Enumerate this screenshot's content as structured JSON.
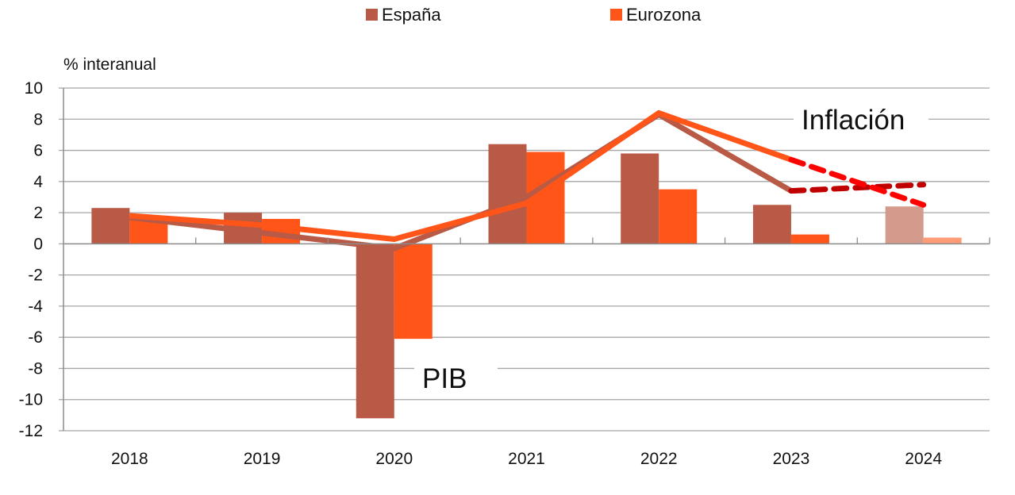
{
  "chart_data": {
    "type": "bar",
    "title": "",
    "ylabel": "% interanual",
    "xlabel": "",
    "ylim": [
      -12,
      10
    ],
    "yticks": [
      10,
      8,
      6,
      4,
      2,
      0,
      -2,
      -4,
      -6,
      -8,
      -10,
      -12
    ],
    "ytick_labels": [
      "10",
      "8",
      "6",
      "4",
      "2",
      "0",
      "-2",
      "-4",
      "-6",
      "-8",
      "-10",
      "-12"
    ],
    "grid": true,
    "legend_position": "top-center",
    "categories": [
      "2018",
      "2019",
      "2020",
      "2021",
      "2022",
      "2023",
      "2024"
    ],
    "forecast_categories": [
      "2024"
    ],
    "series": [
      {
        "name": "España",
        "kind": "bar",
        "metric": "PIB",
        "color": "#B85A45",
        "forecast_color": "#D49A8C",
        "values": [
          2.3,
          2.0,
          -11.2,
          6.4,
          5.8,
          2.5,
          2.4
        ]
      },
      {
        "name": "Eurozona",
        "kind": "bar",
        "metric": "PIB",
        "color": "#FF5519",
        "forecast_color": "#FF9C78",
        "values": [
          1.8,
          1.6,
          -6.1,
          5.9,
          3.5,
          0.6,
          0.4
        ]
      },
      {
        "name": "España",
        "kind": "line",
        "metric": "Inflación",
        "color": "#B85A45",
        "forecast_color": "#C00000",
        "forecast_from": "2023",
        "values": [
          1.7,
          0.7,
          -0.3,
          3.0,
          8.3,
          3.4,
          3.8
        ]
      },
      {
        "name": "Eurozona",
        "kind": "line",
        "metric": "Inflación",
        "color": "#FF5519",
        "forecast_color": "#FF0000",
        "forecast_from": "2023",
        "values": [
          1.8,
          1.2,
          0.3,
          2.6,
          8.4,
          5.4,
          2.5
        ]
      }
    ],
    "legend": [
      {
        "label": "España",
        "color": "#B85A45"
      },
      {
        "label": "Eurozona",
        "color": "#FF5519"
      }
    ],
    "annotations": [
      {
        "text": "Inflación",
        "near": "2023-2024 top"
      },
      {
        "text": "PIB",
        "near": "2020 lower"
      }
    ]
  }
}
